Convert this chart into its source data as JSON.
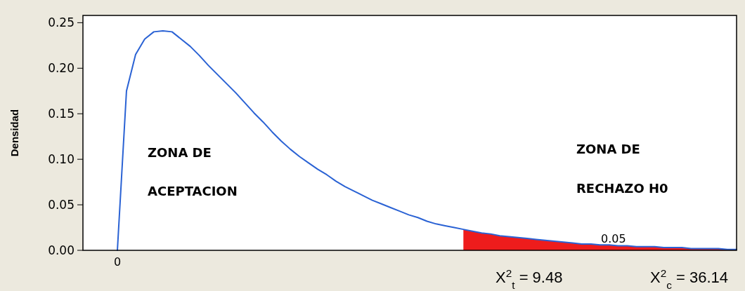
{
  "chart_data": {
    "type": "line",
    "ylabel": "Densidad",
    "categories": [
      "0",
      null,
      null,
      null,
      null,
      null,
      null,
      null,
      null,
      null,
      null,
      null,
      null,
      null,
      null,
      null,
      null,
      null,
      null,
      null,
      null,
      null,
      null,
      null,
      null,
      null,
      null,
      null,
      null,
      null,
      null,
      null,
      null,
      null,
      null,
      null,
      null,
      null,
      null,
      null,
      null,
      null,
      null,
      null,
      null,
      null,
      null,
      null,
      null,
      null,
      null,
      null,
      null,
      null,
      null,
      null,
      null,
      null,
      null,
      null,
      null,
      null,
      null,
      null,
      null,
      null,
      null,
      null,
      null
    ],
    "ylim": [
      0,
      0.258
    ],
    "yticks": [
      {
        "value": 0,
        "label": "0.00"
      },
      {
        "value": 0.05,
        "label": "0.05"
      },
      {
        "value": 0.1,
        "label": "0.10"
      },
      {
        "value": 0.15,
        "label": "0.15"
      },
      {
        "value": 0.2,
        "label": "0.20"
      },
      {
        "value": 0.25,
        "label": "0.25"
      }
    ],
    "grid": false,
    "marker": "none",
    "line_style": "solid",
    "series": [
      {
        "color": "#2a62d4",
        "values": [
          0,
          0.175,
          0.215,
          0.232,
          0.24,
          0.241,
          0.24,
          0.232,
          0.224,
          0.214,
          0.203,
          0.193,
          0.183,
          0.173,
          0.162,
          0.151,
          0.141,
          0.13,
          0.12,
          0.111,
          0.103,
          0.096,
          0.089,
          0.083,
          0.076,
          0.07,
          0.065,
          0.06,
          0.055,
          0.051,
          0.047,
          0.043,
          0.039,
          0.036,
          0.032,
          0.029,
          0.027,
          0.025,
          0.023,
          0.021,
          0.019,
          0.018,
          0.016,
          0.015,
          0.014,
          0.013,
          0.012,
          0.011,
          0.01,
          0.009,
          0.008,
          0.007,
          0.007,
          0.006,
          0.006,
          0.005,
          0.005,
          0.004,
          0.004,
          0.004,
          0.003,
          0.003,
          0.003,
          0.002,
          0.002,
          0.002,
          0.002,
          0.001,
          0.001
        ]
      },
      {
        "type": "area",
        "color": "#ee1c1c",
        "values": [
          null,
          null,
          null,
          null,
          null,
          null,
          null,
          null,
          null,
          null,
          null,
          null,
          null,
          null,
          null,
          null,
          null,
          null,
          null,
          null,
          null,
          null,
          null,
          null,
          null,
          null,
          null,
          null,
          null,
          null,
          null,
          null,
          null,
          null,
          null,
          null,
          null,
          null,
          0.023,
          0.021,
          0.019,
          0.018,
          0.016,
          0.015,
          0.014,
          0.013,
          0.012,
          0.011,
          0.01,
          0.009,
          0.008,
          0.007,
          0.007,
          0.006,
          0.006,
          0.005,
          0.005,
          0.004,
          0.004,
          0.004,
          0.003,
          0.003,
          0.003,
          0.002,
          0.002,
          0.002,
          0.002,
          0.001,
          0.001
        ]
      }
    ],
    "annotations": [
      "ZONA DE",
      "ACEPTACION",
      "ZONA DE",
      "RECHAZO H0",
      "0.05",
      "X$^{2}$$_{t}$ = 9.48",
      "X$^{2}$$_{c}$ = 36.14"
    ]
  }
}
